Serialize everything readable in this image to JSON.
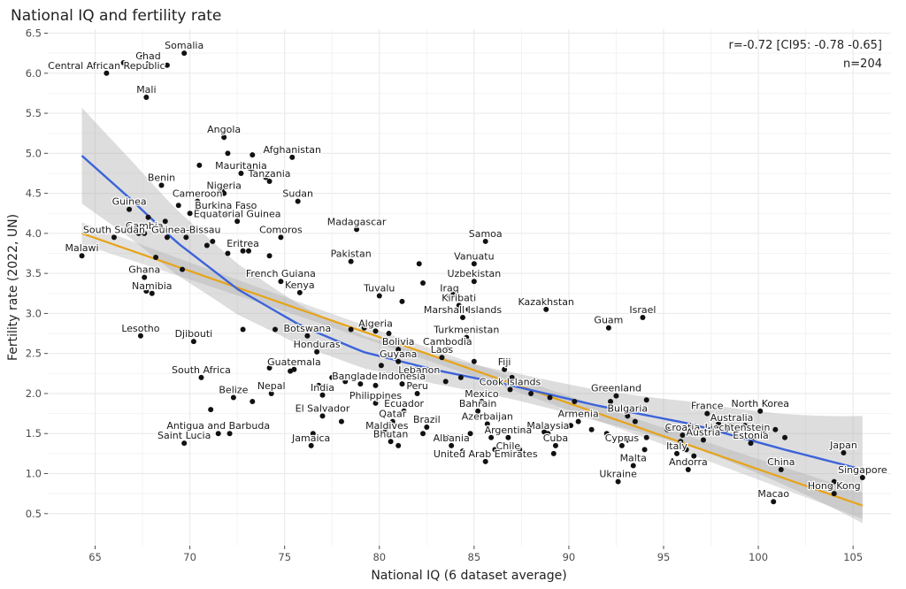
{
  "chart_data": {
    "type": "scatter",
    "title": "National IQ and fertility rate",
    "xlabel": "National IQ (6 dataset average)",
    "ylabel": "Fertility rate (2022, UN)",
    "xlim": [
      62.5,
      107
    ],
    "ylim": [
      0.1,
      6.55
    ],
    "xticks": [
      65,
      70,
      75,
      80,
      85,
      90,
      95,
      100,
      105
    ],
    "yticks": [
      0.5,
      1.0,
      1.5,
      2.0,
      2.5,
      3.0,
      3.5,
      4.0,
      4.5,
      5.0,
      5.5,
      6.0,
      6.5
    ],
    "xtick_labels": [
      "65",
      "70",
      "75",
      "80",
      "85",
      "90",
      "95",
      "100",
      "105"
    ],
    "ytick_labels": [
      "0.5",
      "1.0",
      "1.5",
      "2.0",
      "2.5",
      "3.0",
      "3.5",
      "4.0",
      "4.5",
      "5.0",
      "5.5",
      "6.0",
      "6.5"
    ],
    "grid": true,
    "annotation": {
      "line1": "r=-0.72 [CI95: -0.78 -0.65]",
      "line2": "n=204",
      "position": "top-right"
    },
    "colors": {
      "points": "#111111",
      "loess": "#3b63d9",
      "linear": "#e8a317",
      "band": "#a9a9a9",
      "panel": "#ffffff",
      "grid": "#ebebeb"
    },
    "labeled_points": [
      {
        "label": "Somalia",
        "x": 69.7,
        "y": 6.25
      },
      {
        "label": "Chad",
        "x": 67.8,
        "y": 6.12
      },
      {
        "label": "Central African Republic",
        "x": 65.6,
        "y": 6.0
      },
      {
        "label": "Mali",
        "x": 67.7,
        "y": 5.7
      },
      {
        "label": "Angola",
        "x": 71.8,
        "y": 5.2
      },
      {
        "label": "Afghanistan",
        "x": 75.4,
        "y": 4.95
      },
      {
        "label": "Mauritania",
        "x": 72.7,
        "y": 4.75
      },
      {
        "label": "Tanzania",
        "x": 74.2,
        "y": 4.65
      },
      {
        "label": "Benin",
        "x": 68.5,
        "y": 4.6
      },
      {
        "label": "Nigeria",
        "x": 71.8,
        "y": 4.5
      },
      {
        "label": "Sudan",
        "x": 75.7,
        "y": 4.4
      },
      {
        "label": "Cameroon",
        "x": 70.4,
        "y": 4.4
      },
      {
        "label": "Guinea",
        "x": 66.8,
        "y": 4.3
      },
      {
        "label": "Burkina Faso",
        "x": 71.9,
        "y": 4.25
      },
      {
        "label": "Equatorial Guinea",
        "x": 72.5,
        "y": 4.15
      },
      {
        "label": "Gambia",
        "x": 67.6,
        "y": 4.0
      },
      {
        "label": "Madagascar",
        "x": 78.8,
        "y": 4.05
      },
      {
        "label": "South Sudan",
        "x": 66.0,
        "y": 3.95
      },
      {
        "label": "Comoros",
        "x": 74.8,
        "y": 3.95
      },
      {
        "label": "Guinea-Bissau",
        "x": 69.8,
        "y": 3.95
      },
      {
        "label": "Samoa",
        "x": 85.6,
        "y": 3.9
      },
      {
        "label": "Eritrea",
        "x": 72.8,
        "y": 3.78
      },
      {
        "label": "Malawi",
        "x": 64.3,
        "y": 3.72
      },
      {
        "label": "Pakistan",
        "x": 78.5,
        "y": 3.65
      },
      {
        "label": "Vanuatu",
        "x": 85.0,
        "y": 3.62
      },
      {
        "label": "Ghana",
        "x": 67.6,
        "y": 3.45
      },
      {
        "label": "French Guiana",
        "x": 74.8,
        "y": 3.4
      },
      {
        "label": "Uzbekistan",
        "x": 85.0,
        "y": 3.4
      },
      {
        "label": "Namibia",
        "x": 68.0,
        "y": 3.25
      },
      {
        "label": "Kenya",
        "x": 75.8,
        "y": 3.26
      },
      {
        "label": "Tuvalu",
        "x": 80.0,
        "y": 3.22
      },
      {
        "label": "Iraq",
        "x": 83.7,
        "y": 3.22
      },
      {
        "label": "Kiribati",
        "x": 84.2,
        "y": 3.1
      },
      {
        "label": "Kazakhstan",
        "x": 88.8,
        "y": 3.05
      },
      {
        "label": "Marshall Islands",
        "x": 84.4,
        "y": 2.95
      },
      {
        "label": "Israel",
        "x": 93.9,
        "y": 2.95
      },
      {
        "label": "Guam",
        "x": 92.1,
        "y": 2.82
      },
      {
        "label": "Algeria",
        "x": 79.8,
        "y": 2.78
      },
      {
        "label": "Botswana",
        "x": 76.2,
        "y": 2.72
      },
      {
        "label": "Lesotho",
        "x": 67.4,
        "y": 2.72
      },
      {
        "label": "Turkmenistan",
        "x": 84.6,
        "y": 2.7
      },
      {
        "label": "Djibouti",
        "x": 70.2,
        "y": 2.65
      },
      {
        "label": "Bolivia",
        "x": 81.0,
        "y": 2.55
      },
      {
        "label": "Cambodia",
        "x": 83.6,
        "y": 2.55
      },
      {
        "label": "Honduras",
        "x": 76.7,
        "y": 2.52
      },
      {
        "label": "Laos",
        "x": 83.3,
        "y": 2.45
      },
      {
        "label": "Guyana",
        "x": 81.0,
        "y": 2.4
      },
      {
        "label": "Guatemala",
        "x": 75.5,
        "y": 2.3
      },
      {
        "label": "Fiji",
        "x": 86.6,
        "y": 2.3
      },
      {
        "label": "Lebanon",
        "x": 82.1,
        "y": 2.2
      },
      {
        "label": "South Africa",
        "x": 70.6,
        "y": 2.2
      },
      {
        "label": "Bangladesh",
        "x": 79.0,
        "y": 2.12
      },
      {
        "label": "Indonesia",
        "x": 81.2,
        "y": 2.12
      },
      {
        "label": "Cook Islands",
        "x": 86.9,
        "y": 2.05
      },
      {
        "label": "Peru",
        "x": 82.0,
        "y": 2.0
      },
      {
        "label": "Nepal",
        "x": 74.3,
        "y": 2.0
      },
      {
        "label": "India",
        "x": 77.0,
        "y": 1.98
      },
      {
        "label": "Greenland",
        "x": 92.5,
        "y": 1.97
      },
      {
        "label": "Belize",
        "x": 72.3,
        "y": 1.95
      },
      {
        "label": "Mexico",
        "x": 85.4,
        "y": 1.9
      },
      {
        "label": "Philippines",
        "x": 79.8,
        "y": 1.88
      },
      {
        "label": "Ecuador",
        "x": 81.3,
        "y": 1.78
      },
      {
        "label": "Bahrain",
        "x": 85.2,
        "y": 1.78
      },
      {
        "label": "North Korea",
        "x": 100.1,
        "y": 1.78
      },
      {
        "label": "El Salvador",
        "x": 77.0,
        "y": 1.72
      },
      {
        "label": "Bulgaria",
        "x": 93.1,
        "y": 1.72
      },
      {
        "label": "France",
        "x": 97.3,
        "y": 1.75
      },
      {
        "label": "Armenia",
        "x": 90.5,
        "y": 1.65
      },
      {
        "label": "Qatar",
        "x": 80.7,
        "y": 1.65
      },
      {
        "label": "Azerbaijan",
        "x": 85.7,
        "y": 1.62
      },
      {
        "label": "Australia",
        "x": 98.6,
        "y": 1.6
      },
      {
        "label": "Brazil",
        "x": 82.5,
        "y": 1.58
      },
      {
        "label": "Maldives",
        "x": 80.4,
        "y": 1.5
      },
      {
        "label": "Malaysia",
        "x": 88.9,
        "y": 1.5
      },
      {
        "label": "Liechtenstein",
        "x": 98.9,
        "y": 1.48
      },
      {
        "label": "Croatia",
        "x": 96.0,
        "y": 1.48
      },
      {
        "label": "Antigua and Barbuda",
        "x": 71.5,
        "y": 1.5
      },
      {
        "label": "Argentina",
        "x": 86.8,
        "y": 1.45
      },
      {
        "label": "Bhutan",
        "x": 80.6,
        "y": 1.4
      },
      {
        "label": "Austria",
        "x": 97.1,
        "y": 1.42
      },
      {
        "label": "Estonia",
        "x": 99.6,
        "y": 1.38
      },
      {
        "label": "Saint Lucia",
        "x": 69.7,
        "y": 1.38
      },
      {
        "label": "Jamaica",
        "x": 76.4,
        "y": 1.35
      },
      {
        "label": "Cuba",
        "x": 89.3,
        "y": 1.35
      },
      {
        "label": "Albania",
        "x": 83.8,
        "y": 1.35
      },
      {
        "label": "Cyprus",
        "x": 92.8,
        "y": 1.35
      },
      {
        "label": "Chile",
        "x": 86.8,
        "y": 1.25
      },
      {
        "label": "Italy",
        "x": 95.7,
        "y": 1.25
      },
      {
        "label": "Japan",
        "x": 104.5,
        "y": 1.26
      },
      {
        "label": "United Arab Emirates",
        "x": 85.6,
        "y": 1.15
      },
      {
        "label": "Malta",
        "x": 93.4,
        "y": 1.1
      },
      {
        "label": "Andorra",
        "x": 96.3,
        "y": 1.05
      },
      {
        "label": "China",
        "x": 101.2,
        "y": 1.05
      },
      {
        "label": "Ukraine",
        "x": 92.6,
        "y": 0.9
      },
      {
        "label": "Singapore",
        "x": 105.5,
        "y": 0.95
      },
      {
        "label": "Macao",
        "x": 100.8,
        "y": 0.65
      },
      {
        "label": "Hong Kong",
        "x": 104.0,
        "y": 0.75
      }
    ],
    "unlabeled_points": [
      [
        66.5,
        6.13
      ],
      [
        67.5,
        6.2
      ],
      [
        68.8,
        6.1
      ],
      [
        70.5,
        4.85
      ],
      [
        72.0,
        5.0
      ],
      [
        73.3,
        4.98
      ],
      [
        74.0,
        4.7
      ],
      [
        71.7,
        4.55
      ],
      [
        69.4,
        4.35
      ],
      [
        67.8,
        4.2
      ],
      [
        70.0,
        4.25
      ],
      [
        68.7,
        4.15
      ],
      [
        67.3,
        4.0
      ],
      [
        66.8,
        4.12
      ],
      [
        68.8,
        3.95
      ],
      [
        70.9,
        3.85
      ],
      [
        72.0,
        3.75
      ],
      [
        74.2,
        3.72
      ],
      [
        73.1,
        3.78
      ],
      [
        71.2,
        3.9
      ],
      [
        68.2,
        3.7
      ],
      [
        67.7,
        3.28
      ],
      [
        69.6,
        3.55
      ],
      [
        82.1,
        3.62
      ],
      [
        82.3,
        3.38
      ],
      [
        81.2,
        3.15
      ],
      [
        83.9,
        3.25
      ],
      [
        84.7,
        3.05
      ],
      [
        72.8,
        2.8
      ],
      [
        74.5,
        2.8
      ],
      [
        79.2,
        2.82
      ],
      [
        78.5,
        2.8
      ],
      [
        80.5,
        2.75
      ],
      [
        81.5,
        2.5
      ],
      [
        82.0,
        2.3
      ],
      [
        80.1,
        2.35
      ],
      [
        77.5,
        2.2
      ],
      [
        78.2,
        2.15
      ],
      [
        79.8,
        2.1
      ],
      [
        76.8,
        2.1
      ],
      [
        74.2,
        2.32
      ],
      [
        75.3,
        2.28
      ],
      [
        83.5,
        2.15
      ],
      [
        84.3,
        2.2
      ],
      [
        85.0,
        2.4
      ],
      [
        87.0,
        2.2
      ],
      [
        88.0,
        2.0
      ],
      [
        89.0,
        1.95
      ],
      [
        90.3,
        1.9
      ],
      [
        92.2,
        1.9
      ],
      [
        94.1,
        1.92
      ],
      [
        71.1,
        1.8
      ],
      [
        73.3,
        1.9
      ],
      [
        78.0,
        1.65
      ],
      [
        80.5,
        1.6
      ],
      [
        82.3,
        1.5
      ],
      [
        83.6,
        1.45
      ],
      [
        84.8,
        1.5
      ],
      [
        85.9,
        1.45
      ],
      [
        87.6,
        1.55
      ],
      [
        88.7,
        1.52
      ],
      [
        89.6,
        1.75
      ],
      [
        90.1,
        1.6
      ],
      [
        91.2,
        1.55
      ],
      [
        92.0,
        1.5
      ],
      [
        93.5,
        1.65
      ],
      [
        94.1,
        1.45
      ],
      [
        95.2,
        1.55
      ],
      [
        96.4,
        1.6
      ],
      [
        96.9,
        1.5
      ],
      [
        97.5,
        1.55
      ],
      [
        97.9,
        1.62
      ],
      [
        98.3,
        1.55
      ],
      [
        98.8,
        1.5
      ],
      [
        99.3,
        1.6
      ],
      [
        99.8,
        1.45
      ],
      [
        100.3,
        1.5
      ],
      [
        100.9,
        1.55
      ],
      [
        101.4,
        1.45
      ],
      [
        96.2,
        1.3
      ],
      [
        96.6,
        1.22
      ],
      [
        95.9,
        1.4
      ],
      [
        93.1,
        1.42
      ],
      [
        94.0,
        1.3
      ],
      [
        89.2,
        1.25
      ],
      [
        87.4,
        1.3
      ],
      [
        86.1,
        1.3
      ],
      [
        84.4,
        1.28
      ],
      [
        73.9,
        1.58
      ],
      [
        72.1,
        1.5
      ],
      [
        76.5,
        1.5
      ],
      [
        80.3,
        1.52
      ],
      [
        81.0,
        1.35
      ],
      [
        103.8,
        0.85
      ],
      [
        104.0,
        0.9
      ]
    ]
  }
}
